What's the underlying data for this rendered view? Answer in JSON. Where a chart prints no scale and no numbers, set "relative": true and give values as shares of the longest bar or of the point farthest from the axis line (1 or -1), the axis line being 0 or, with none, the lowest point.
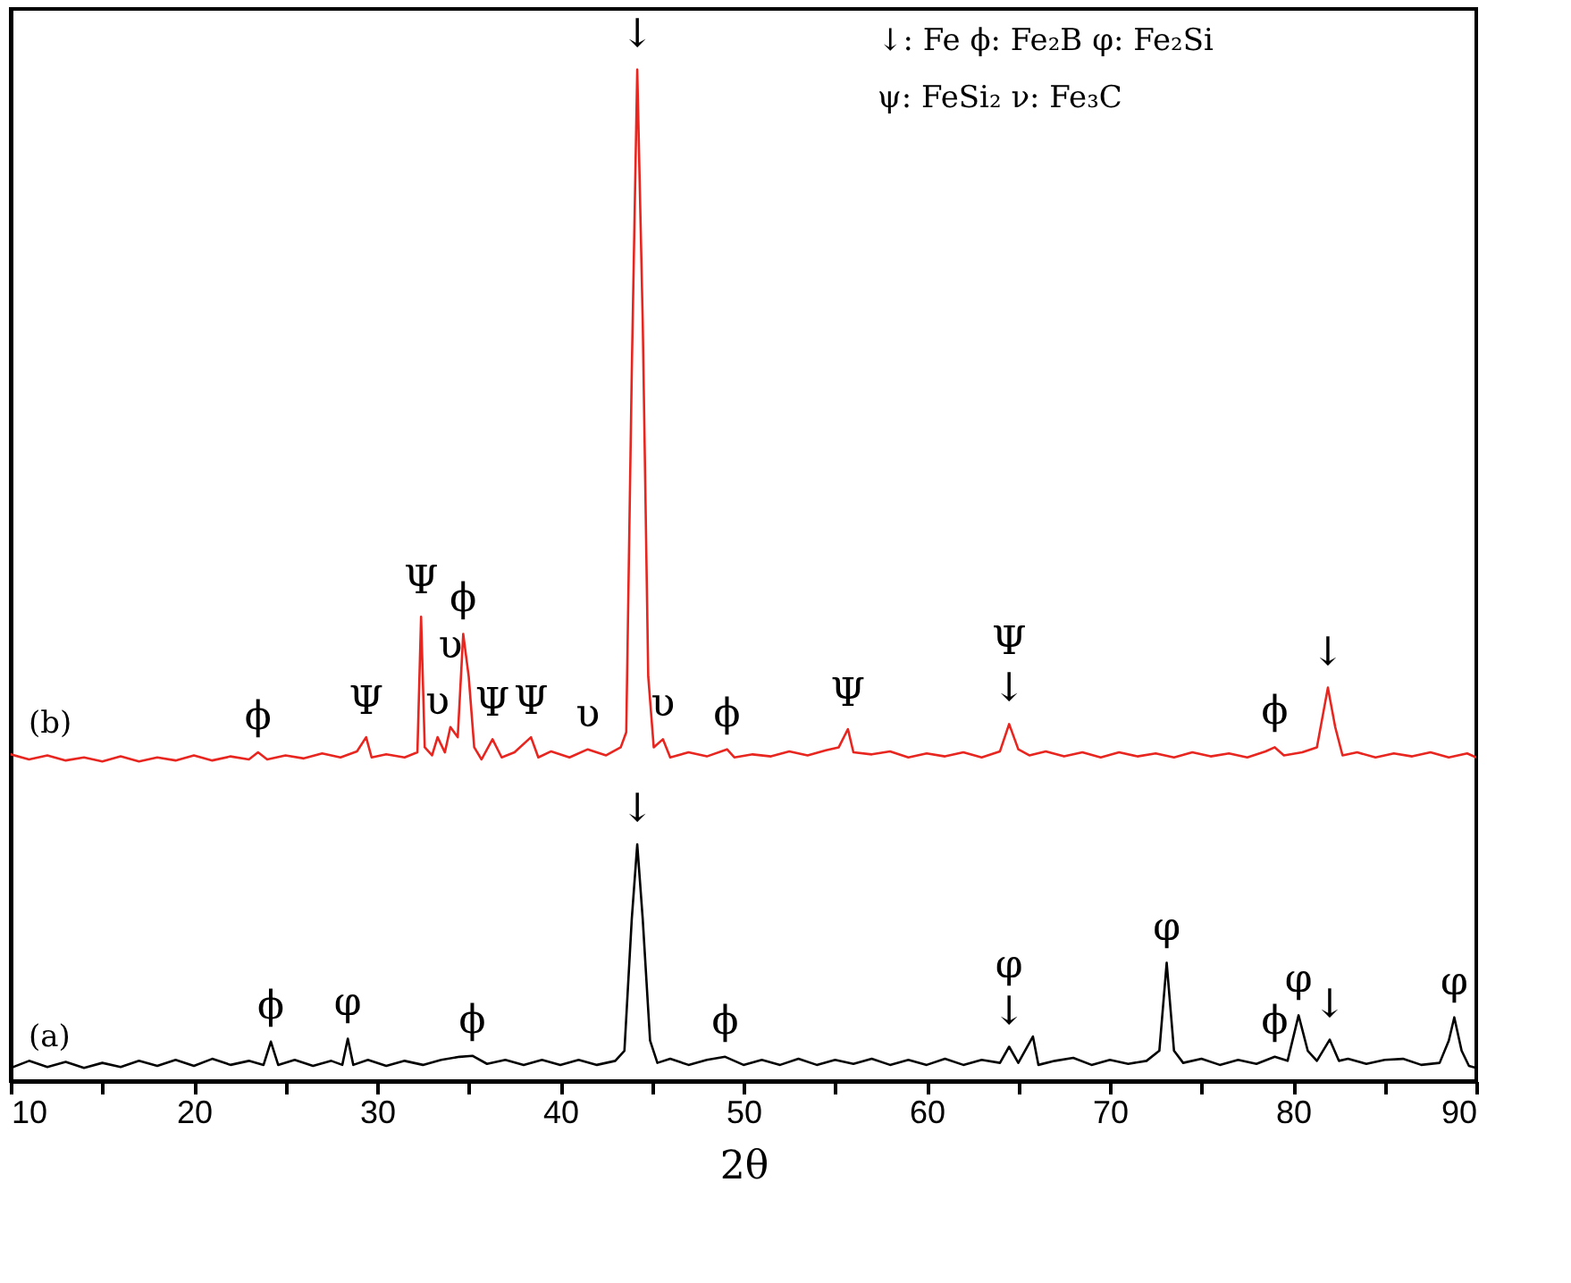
{
  "chart_data": {
    "type": "line",
    "relative": true,
    "xlabel": "2θ",
    "xlim": [
      10,
      90
    ],
    "xticks": [
      10,
      {
        "value": 15,
        "label": null
      },
      20,
      {
        "value": 25,
        "label": null
      },
      30,
      {
        "value": 35,
        "label": null
      },
      40,
      {
        "value": 45,
        "label": null
      },
      50,
      {
        "value": 55,
        "label": null
      },
      60,
      {
        "value": 65,
        "label": null
      },
      70,
      {
        "value": 75,
        "label": null
      },
      80,
      {
        "value": 85,
        "label": null
      },
      90
    ],
    "tick_labels": "x",
    "grid": false,
    "marker": "none",
    "line_style": "solid",
    "series": [
      {
        "name": "(b)",
        "color": "#e8251f",
        "x": [
          10,
          11,
          12,
          13,
          14,
          15,
          16,
          17,
          18,
          19,
          20,
          21,
          22,
          23,
          23.5,
          24,
          25,
          26,
          27,
          28,
          28.9,
          29.4,
          29.7,
          30.5,
          31.5,
          32.2,
          32.4,
          32.6,
          33,
          33.3,
          33.7,
          34,
          34.4,
          34.7,
          35,
          35.3,
          35.7,
          36.3,
          36.8,
          37.5,
          38.4,
          38.8,
          39.5,
          40.5,
          41.5,
          42.5,
          43.3,
          43.6,
          43.9,
          44.2,
          44.5,
          44.8,
          45.1,
          45.6,
          46,
          47,
          48,
          49.1,
          49.5,
          50.5,
          51.5,
          52.5,
          53.5,
          54.5,
          55.2,
          55.7,
          56,
          57,
          58,
          59,
          60,
          61,
          62,
          63,
          64,
          64.5,
          65,
          65.6,
          66.5,
          67.5,
          68.5,
          69.5,
          70.5,
          71.5,
          72.5,
          73.5,
          74.5,
          75.5,
          76.5,
          77.5,
          78.5,
          79,
          79.5,
          80.5,
          81.3,
          81.9,
          82.3,
          82.7,
          83.5,
          84.5,
          85.5,
          86.5,
          87.5,
          88.5,
          89.5,
          90
        ],
        "values": [
          0.323,
          0.318,
          0.322,
          0.317,
          0.32,
          0.316,
          0.321,
          0.316,
          0.32,
          0.317,
          0.322,
          0.317,
          0.321,
          0.318,
          0.325,
          0.318,
          0.322,
          0.319,
          0.324,
          0.32,
          0.326,
          0.34,
          0.32,
          0.323,
          0.32,
          0.325,
          0.459,
          0.33,
          0.322,
          0.34,
          0.325,
          0.35,
          0.34,
          0.442,
          0.4,
          0.33,
          0.318,
          0.338,
          0.32,
          0.325,
          0.34,
          0.32,
          0.326,
          0.32,
          0.328,
          0.322,
          0.33,
          0.345,
          0.7,
          1,
          0.75,
          0.4,
          0.33,
          0.338,
          0.32,
          0.325,
          0.321,
          0.328,
          0.32,
          0.323,
          0.321,
          0.326,
          0.322,
          0.327,
          0.33,
          0.348,
          0.325,
          0.323,
          0.326,
          0.32,
          0.324,
          0.321,
          0.325,
          0.32,
          0.326,
          0.353,
          0.328,
          0.322,
          0.326,
          0.321,
          0.325,
          0.32,
          0.325,
          0.321,
          0.324,
          0.32,
          0.325,
          0.321,
          0.324,
          0.32,
          0.326,
          0.33,
          0.322,
          0.325,
          0.33,
          0.389,
          0.35,
          0.322,
          0.325,
          0.32,
          0.324,
          0.321,
          0.325,
          0.32,
          0.324,
          0.32
        ]
      },
      {
        "name": "(a)",
        "color": "#000000",
        "x": [
          10,
          11,
          12,
          13,
          14,
          15,
          16,
          17,
          18,
          19,
          20,
          21,
          22,
          23,
          23.8,
          24.2,
          24.6,
          25.5,
          26.5,
          27.5,
          28.1,
          28.4,
          28.7,
          29.5,
          30.5,
          31.5,
          32.5,
          33.5,
          34.5,
          35.2,
          36,
          37,
          38,
          39,
          40,
          41,
          42,
          43,
          43.5,
          43.9,
          44.2,
          44.5,
          44.9,
          45.3,
          46,
          47,
          48,
          49,
          50,
          51,
          52,
          53,
          54,
          55,
          56,
          57,
          58,
          59,
          60,
          61,
          62,
          63,
          64,
          64.5,
          65,
          65.8,
          66.1,
          67,
          68,
          69,
          70,
          71,
          72,
          72.7,
          73.1,
          73.5,
          74,
          75,
          76,
          77,
          78,
          79,
          79.7,
          80.3,
          80.8,
          81.3,
          82,
          82.5,
          83,
          84,
          85,
          86,
          87,
          88,
          88.5,
          88.8,
          89.2,
          89.6,
          90
        ],
        "values": [
          0.013,
          0.02,
          0.014,
          0.019,
          0.013,
          0.018,
          0.014,
          0.02,
          0.015,
          0.021,
          0.015,
          0.022,
          0.016,
          0.02,
          0.016,
          0.039,
          0.016,
          0.021,
          0.015,
          0.02,
          0.016,
          0.042,
          0.016,
          0.021,
          0.015,
          0.02,
          0.016,
          0.021,
          0.024,
          0.025,
          0.017,
          0.021,
          0.016,
          0.021,
          0.016,
          0.021,
          0.016,
          0.02,
          0.03,
          0.16,
          0.234,
          0.16,
          0.04,
          0.018,
          0.022,
          0.016,
          0.021,
          0.024,
          0.016,
          0.021,
          0.016,
          0.022,
          0.016,
          0.021,
          0.017,
          0.022,
          0.016,
          0.021,
          0.016,
          0.022,
          0.016,
          0.021,
          0.018,
          0.034,
          0.018,
          0.044,
          0.016,
          0.02,
          0.023,
          0.016,
          0.021,
          0.017,
          0.02,
          0.03,
          0.117,
          0.03,
          0.018,
          0.022,
          0.016,
          0.021,
          0.017,
          0.024,
          0.02,
          0.065,
          0.03,
          0.02,
          0.041,
          0.02,
          0.022,
          0.017,
          0.021,
          0.022,
          0.016,
          0.018,
          0.04,
          0.063,
          0.03,
          0.015,
          0.013
        ]
      }
    ],
    "annotations": [
      "↓: Fe  ϕ: Fe₂B  φ: Fe₂Si",
      "ψ: FeSi₂  ν: Fe₃C",
      {
        "text": "↓",
        "x": 44.2,
        "y": 1
      },
      {
        "text": "ϕ",
        "x": 23.5,
        "y": 0.325
      },
      {
        "text": "Ψ",
        "x": 29.4,
        "y": 0.34
      },
      {
        "text": "Ψ",
        "x": 32.4,
        "y": 0.459
      },
      {
        "text": "υ",
        "x": 33.3,
        "y": 0.34
      },
      {
        "text": "υ",
        "x": 34.0,
        "y": 0.35
      },
      {
        "text": "ϕ",
        "x": 34.7,
        "y": 0.442
      },
      {
        "text": "Ψ",
        "x": 36.3,
        "y": 0.338
      },
      {
        "text": "Ψ",
        "x": 38.4,
        "y": 0.34
      },
      {
        "text": "υ",
        "x": 41.5,
        "y": 0.328
      },
      {
        "text": "υ",
        "x": 45.6,
        "y": 0.338
      },
      {
        "text": "ϕ",
        "x": 49.1,
        "y": 0.328
      },
      {
        "text": "Ψ",
        "x": 55.7,
        "y": 0.348
      },
      {
        "text": "↓",
        "x": 64.5,
        "y": 0.353
      },
      {
        "text": "Ψ",
        "x": 64.5,
        "y": 0.353
      },
      {
        "text": "ϕ",
        "x": 79,
        "y": 0.33
      },
      {
        "text": "↓",
        "x": 81.9,
        "y": 0.389
      },
      {
        "text": "↓",
        "x": 44.2,
        "y": 0.234
      },
      {
        "text": "ϕ",
        "x": 24.2,
        "y": 0.039
      },
      {
        "text": "φ",
        "x": 28.4,
        "y": 0.042
      },
      {
        "text": "ϕ",
        "x": 35.2,
        "y": 0.025
      },
      {
        "text": "ϕ",
        "x": 49,
        "y": 0.024
      },
      {
        "text": "↓",
        "x": 64.5,
        "y": 0.034
      },
      {
        "text": "φ",
        "x": 64.5,
        "y": 0.034
      },
      {
        "text": "φ",
        "x": 73.1,
        "y": 0.117
      },
      {
        "text": "ϕ",
        "x": 79,
        "y": 0.024
      },
      {
        "text": "φ",
        "x": 80.3,
        "y": 0.065
      },
      {
        "text": "↓",
        "x": 82,
        "y": 0.041
      },
      {
        "text": "φ",
        "x": 88.8,
        "y": 0.063
      }
    ]
  }
}
